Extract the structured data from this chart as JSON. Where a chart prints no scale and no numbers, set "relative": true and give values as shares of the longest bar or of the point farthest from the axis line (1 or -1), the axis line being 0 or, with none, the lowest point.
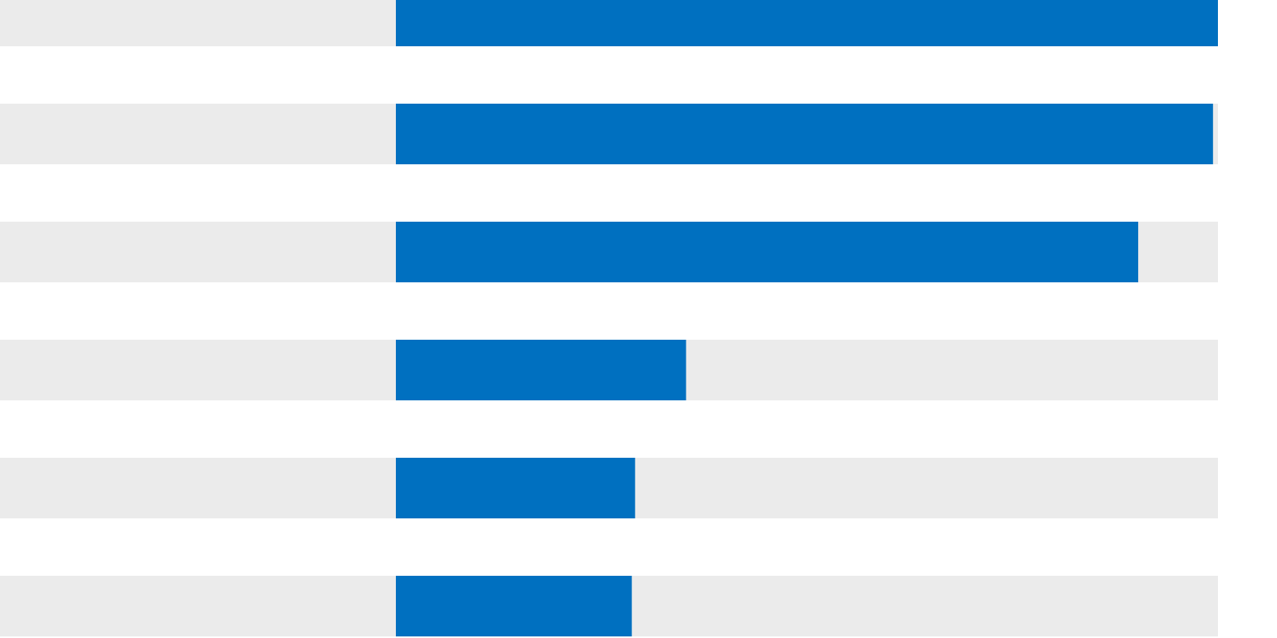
{
  "chart_data": {
    "type": "bar",
    "orientation": "horizontal",
    "relative": true,
    "categories": [
      null,
      null,
      null,
      null,
      null,
      null
    ],
    "values": [
      1,
      0.994,
      0.903,
      0.353,
      0.291,
      0.287
    ],
    "color": "#0070c0"
  }
}
